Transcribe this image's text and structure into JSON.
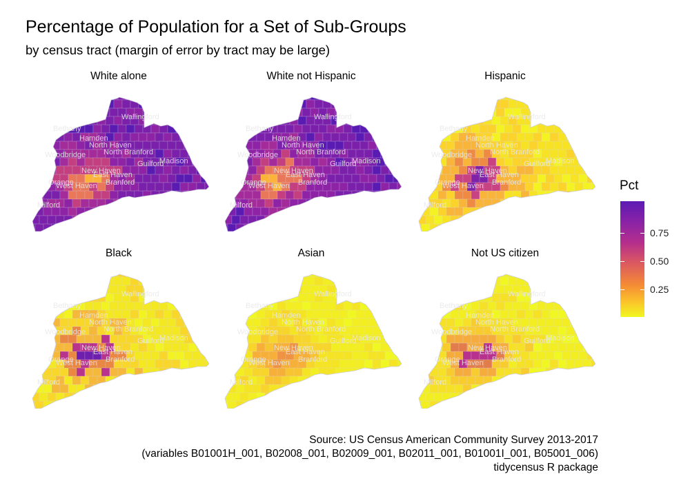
{
  "title": "Percentage of Population for a Set of Sub-Groups",
  "subtitle": "by census tract (margin of error by tract may be large)",
  "towns": [
    "Wallingford",
    "Bethany",
    "Hamden",
    "North Haven",
    "North Branford",
    "Woodbridge",
    "Guilford",
    "Madison",
    "New Haven",
    "East Haven",
    "Orange",
    "West Haven",
    "Branford",
    "Milford"
  ],
  "panels": [
    {
      "title": "White alone",
      "palette": [
        "#5a1bb3",
        "#7a20ab",
        "#8e24a5",
        "#a42b9a",
        "#c33f80",
        "#e9785a",
        "#fbb33a"
      ],
      "base_level": 0.9
    },
    {
      "title": "White not Hispanic",
      "palette": [
        "#5a1bb3",
        "#7a20ab",
        "#8e24a5",
        "#a42b9a",
        "#c33f80",
        "#e9785a",
        "#fbb33a"
      ],
      "base_level": 0.88
    },
    {
      "title": "Hispanic",
      "palette": [
        "#f5f221",
        "#f7e324",
        "#fbd32b",
        "#f9b53a",
        "#ee8a44",
        "#c94282",
        "#7f22a9"
      ],
      "base_level": 0.07
    },
    {
      "title": "Black",
      "palette": [
        "#f2f321",
        "#f4e822",
        "#f8d62a",
        "#f6b83a",
        "#e98743",
        "#b8338c",
        "#6e1fae"
      ],
      "base_level": 0.06
    },
    {
      "title": "Asian",
      "palette": [
        "#f1f721",
        "#f3ee22",
        "#f5e424",
        "#f7d52b",
        "#f8c432",
        "#f6b03a",
        "#ee9244"
      ],
      "base_level": 0.04
    },
    {
      "title": "Not US citizen",
      "palette": [
        "#f1f721",
        "#f3ee22",
        "#f6e126",
        "#f8cc2f",
        "#f6ac3c",
        "#e27d4b",
        "#b8328d"
      ],
      "base_level": 0.05
    }
  ],
  "legend": {
    "title": "Pct",
    "labels": [
      "0.75",
      "0.50",
      "0.25"
    ],
    "colors": [
      "#5c1ab4",
      "#b52f8c",
      "#f48a36",
      "#f1f721"
    ]
  },
  "caption": {
    "line1": "Source: US Census American Community Survey 2013-2017",
    "line2": "(variables B01001H_001, B02008_001, B02009_001, B02011_001, B01001I_001, B05001_006)",
    "line3": "tidycensus R package"
  }
}
